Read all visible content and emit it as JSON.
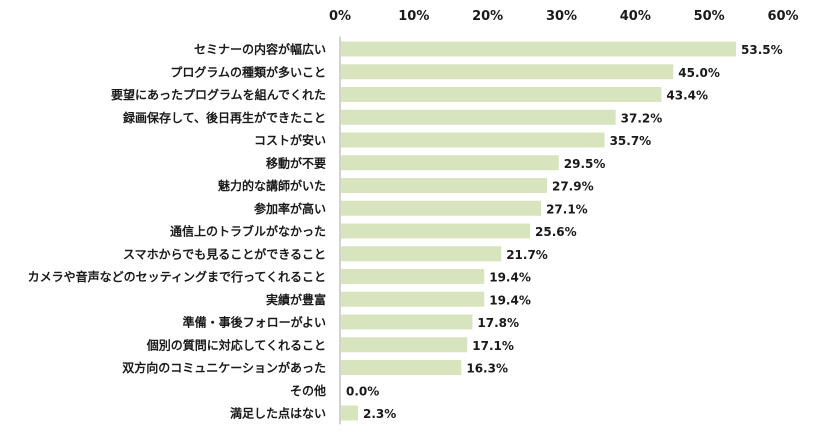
{
  "chart_data": {
    "type": "bar",
    "orientation": "horizontal",
    "categories": [
      "セミナーの内容が幅広い",
      "プログラムの種類が多いこと",
      "要望にあったプログラムを組んでくれた",
      "録画保存して、後日再生ができたこと",
      "コストが安い",
      "移動が不要",
      "魅力的な講師がいた",
      "参加率が高い",
      "通信上のトラブルがなかった",
      "スマホからでも見ることができること",
      "カメラや音声などのセッティングまで行ってくれること",
      "実績が豊富",
      "準備・事後フォローがよい",
      "個別の質問に対応してくれること",
      "双方向のコミュニケーションがあった",
      "その他",
      "満足した点はない"
    ],
    "values": [
      53.5,
      45.0,
      43.4,
      37.2,
      35.7,
      29.5,
      27.9,
      27.1,
      25.6,
      21.7,
      19.4,
      19.4,
      17.8,
      17.1,
      16.3,
      0.0,
      2.3
    ],
    "value_labels": [
      "53.5%",
      "45.0%",
      "43.4%",
      "37.2%",
      "35.7%",
      "29.5%",
      "27.9%",
      "27.1%",
      "25.6%",
      "21.7%",
      "19.4%",
      "19.4%",
      "17.8%",
      "17.1%",
      "16.3%",
      "0.0%",
      "2.3%"
    ],
    "x_ticks": [
      "0%",
      "10%",
      "20%",
      "30%",
      "40%",
      "50%",
      "60%"
    ],
    "x_tick_values": [
      0,
      10,
      20,
      30,
      40,
      50,
      60
    ],
    "xlim": [
      0,
      60
    ],
    "x_axis_position": "top",
    "grid": false,
    "legend": "none",
    "bar_color": "#d7e4bd",
    "axis_color": "#a6a6a6"
  }
}
